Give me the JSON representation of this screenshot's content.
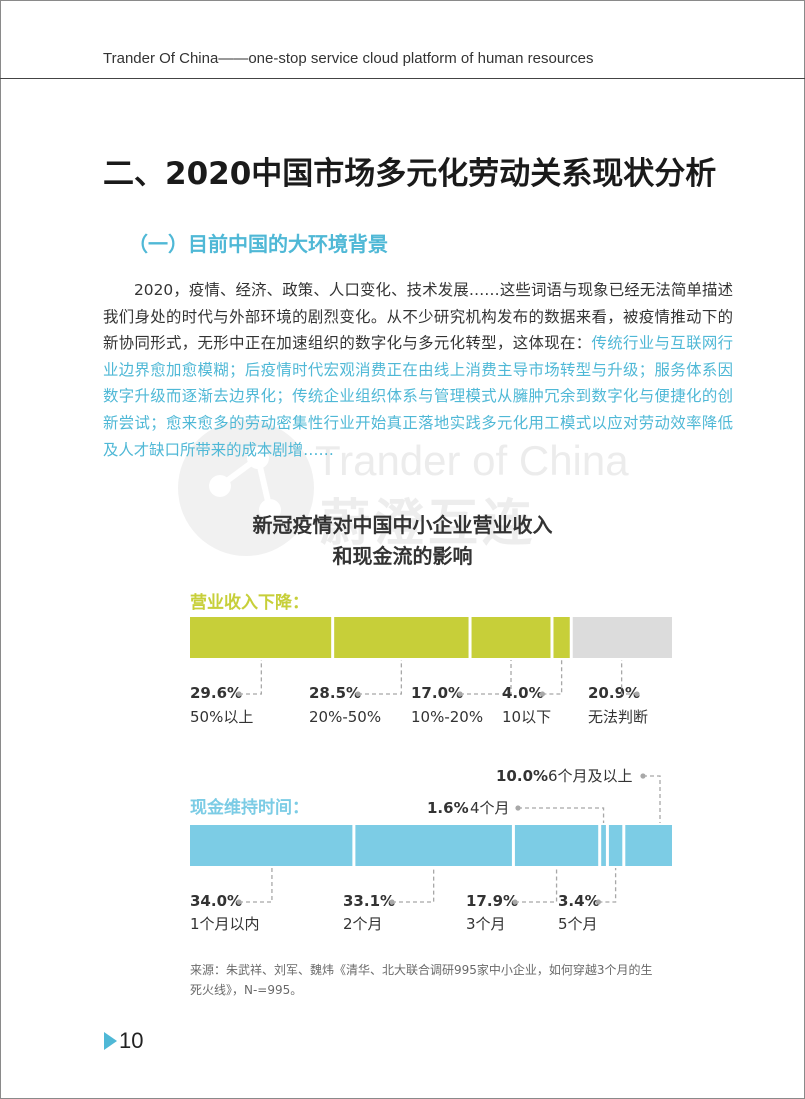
{
  "header": {
    "text": "Trander Of China——one-stop service cloud platform of human resources"
  },
  "section_title": "二、2020中国市场多元化劳动关系现状分析",
  "sub_title": "（一）目前中国的大环境背景",
  "paragraph": {
    "text_plain": "2020，疫情、经济、政策、人口变化、技术发展……这些词语与现象已经无法简单描述我们身处的时代与外部环境的剧烈变化。从不少研究机构发布的数据来看，被疫情推动下的新协同形式，无形中正在加速组织的数字化与多元化转型，这体现在：",
    "text_highlight": "传统行业与互联网行业边界愈加愈模糊；后疫情时代宏观消费正在由线上消费主导市场转型与升级；服务体系因数字升级而逐渐去边界化；传统企业组织体系与管理模式从臃肿冗余到数字化与便捷化的创新尝试；愈来愈多的劳动密集性行业开始真正落地实践多元化用工模式以应对劳动效率降低及人才缺口所带来的成本剧增……"
  },
  "watermark": {
    "en": "Trander of China",
    "cn": "蔚澄互连"
  },
  "colors": {
    "accent_blue": "#4fb8d6",
    "revenue_bar": "#c7cf39",
    "cash_bar": "#7ccce5",
    "unknown_bar": "#dcdcdc",
    "dashed_line": "#a8a8a8"
  },
  "chart_data": {
    "type": "bar",
    "title_line1": "新冠疫情对中国中小企业营业收入",
    "title_line2": "和现金流的影响",
    "groups": [
      {
        "label": "营业收入下降：",
        "color": "#c7cf39",
        "segments": [
          {
            "value": 29.6,
            "value_label": "29.6%",
            "category": "50%以上"
          },
          {
            "value": 28.5,
            "value_label": "28.5%",
            "category": "20%-50%"
          },
          {
            "value": 17.0,
            "value_label": "17.0%",
            "category": "10%-20%"
          },
          {
            "value": 4.0,
            "value_label": "4.0%",
            "category": "10以下"
          },
          {
            "value": 20.9,
            "value_label": "20.9%",
            "category": "无法判断",
            "color": "#dcdcdc"
          }
        ]
      },
      {
        "label": "现金维持时间：",
        "color": "#7ccce5",
        "segments": [
          {
            "value": 34.0,
            "value_label": "34.0%",
            "category": "1个月以内"
          },
          {
            "value": 33.1,
            "value_label": "33.1%",
            "category": "2个月"
          },
          {
            "value": 17.9,
            "value_label": "17.9%",
            "category": "3个月"
          },
          {
            "value": 1.6,
            "value_label": "1.6%",
            "category": "4个月"
          },
          {
            "value": 3.4,
            "value_label": "3.4%",
            "category": "5个月"
          },
          {
            "value": 10.0,
            "value_label": "10.0%",
            "category": "6个月及以上"
          }
        ]
      }
    ]
  },
  "source_note": "来源：朱武祥、刘军、魏炜《清华、北大联合调研995家中小企业，如何穿越3个月的生死火线》，N-=995。",
  "page_number": "10"
}
